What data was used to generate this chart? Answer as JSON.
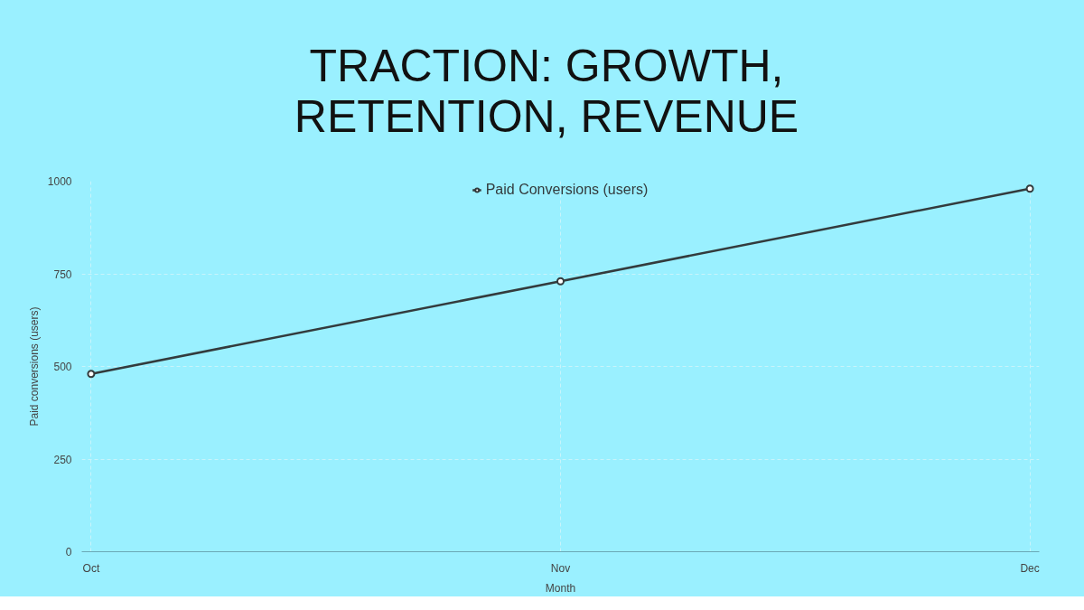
{
  "chart_data": {
    "type": "line",
    "title": "TRACTION: GROWTH, RETENTION, REVENUE",
    "xlabel": "Month",
    "ylabel": "Paid conversions (users)",
    "categories": [
      "Oct",
      "Nov",
      "Dec"
    ],
    "series": [
      {
        "name": "Paid Conversions (users)",
        "color": "#333b3d",
        "values": [
          480,
          730,
          980
        ]
      }
    ],
    "ylim": [
      0,
      1000
    ],
    "yticks": [
      0,
      250,
      500,
      750,
      1000
    ],
    "grid": true,
    "legend": "top",
    "marker": "circle",
    "line_style": "solid"
  }
}
